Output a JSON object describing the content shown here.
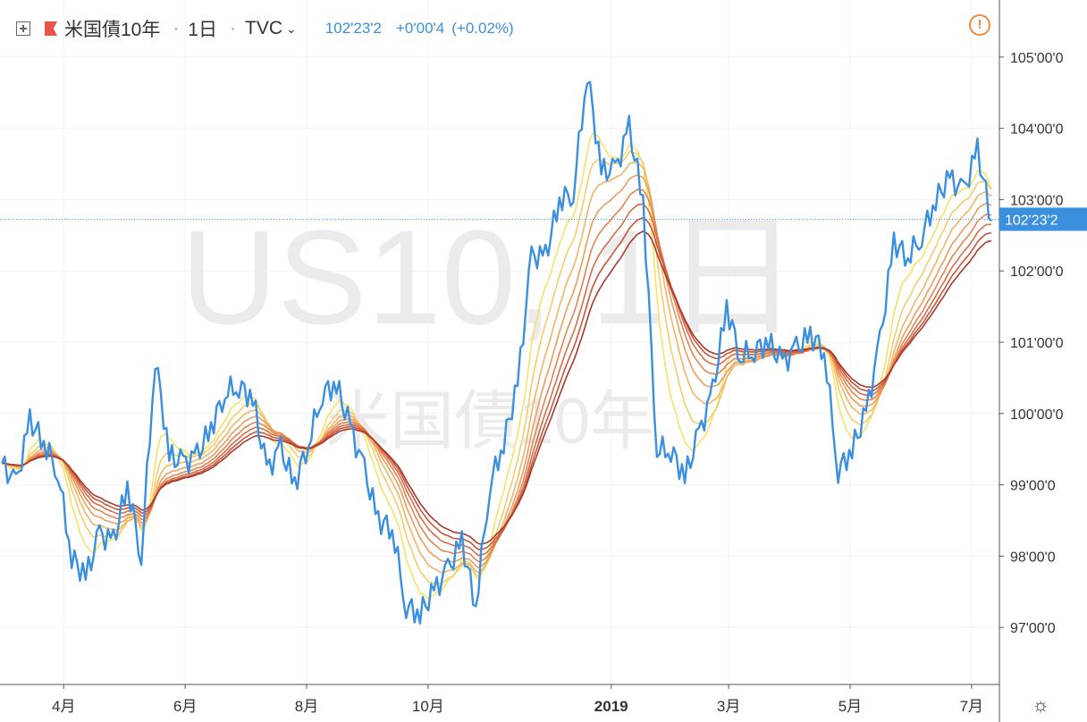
{
  "header": {
    "symbol": "米国債10年",
    "interval": "1日",
    "source": "TVC",
    "last_price": "102'23'2",
    "change": "+0'00'4",
    "change_pct": "(+0.02%)"
  },
  "watermark": {
    "line1": "US10, 1日",
    "line2": "米国債10年"
  },
  "icons": {
    "add": "plus-square-icon",
    "flag": "flag-icon",
    "warning": "exclamation-circle-icon",
    "settings": "gear-icon"
  },
  "colors": {
    "price_line": "#3b8fdf",
    "last_price_badge": "#3b8fdf",
    "ribbon": [
      "#f5e26a",
      "#f3cd6b",
      "#f1b565",
      "#ed9c5c",
      "#e58453",
      "#d96c48",
      "#c8553c",
      "#a63a2b"
    ]
  },
  "chart_data": {
    "type": "line",
    "x": [
      "2018-03-01",
      "2018-03-08",
      "2018-03-15",
      "2018-03-22",
      "2018-03-29",
      "2018-04-05",
      "2018-04-12",
      "2018-04-19",
      "2018-04-26",
      "2018-05-03",
      "2018-05-10",
      "2018-05-17",
      "2018-05-24",
      "2018-05-31",
      "2018-06-07",
      "2018-06-14",
      "2018-06-21",
      "2018-06-28",
      "2018-07-05",
      "2018-07-12",
      "2018-07-19",
      "2018-07-26",
      "2018-08-02",
      "2018-08-09",
      "2018-08-16",
      "2018-08-23",
      "2018-08-30",
      "2018-09-06",
      "2018-09-13",
      "2018-09-20",
      "2018-09-27",
      "2018-10-04",
      "2018-10-11",
      "2018-10-18",
      "2018-10-25",
      "2018-11-01",
      "2018-11-08",
      "2018-11-15",
      "2018-11-22",
      "2018-11-29",
      "2018-12-06",
      "2018-12-13",
      "2018-12-20",
      "2018-12-27",
      "2019-01-03",
      "2019-01-10",
      "2019-01-17",
      "2019-01-24",
      "2019-01-31",
      "2019-02-07",
      "2019-02-14",
      "2019-02-21",
      "2019-02-28",
      "2019-03-07",
      "2019-03-14",
      "2019-03-21",
      "2019-03-28",
      "2019-04-04",
      "2019-04-11",
      "2019-04-18",
      "2019-04-25",
      "2019-05-02",
      "2019-05-09",
      "2019-05-16",
      "2019-05-23",
      "2019-05-30",
      "2019-06-06",
      "2019-06-13",
      "2019-06-20",
      "2019-06-27",
      "2019-07-04",
      "2019-07-11"
    ],
    "series": [
      {
        "values": [
          99.3,
          99.0,
          99.9,
          99.6,
          99.2,
          98.0,
          97.7,
          98.3,
          98.2,
          99.0,
          98.0,
          100.8,
          99.4,
          99.3,
          99.4,
          99.8,
          100.3,
          100.4,
          100.2,
          99.2,
          99.5,
          99.0,
          99.6,
          100.3,
          100.4,
          99.8,
          99.2,
          98.5,
          98.4,
          97.3,
          97.2,
          97.5,
          97.8,
          98.2,
          97.3,
          99.0,
          99.6,
          100.4,
          102.2,
          102.2,
          103.0,
          103.1,
          104.8,
          103.4,
          103.4,
          104.0,
          103.0,
          99.5,
          99.5,
          99.1,
          99.7,
          100.3,
          101.5,
          100.8,
          100.9,
          101.0,
          100.7,
          100.9,
          101.1,
          100.9,
          99.2,
          99.5,
          100.0,
          101.0,
          102.4,
          102.2,
          102.5,
          103.0,
          103.3,
          103.1,
          103.7,
          102.7
        ]
      }
    ],
    "ribbon_series": 8,
    "ylim": [
      96.2,
      105.8
    ],
    "yticks": [
      97,
      98,
      99,
      100,
      101,
      102,
      103,
      104,
      105
    ],
    "ytick_labels": [
      "97'00'0",
      "98'00'0",
      "99'00'0",
      "100'00'0",
      "101'00'0",
      "102'00'0",
      "103'00'0",
      "104'00'0",
      "105'00'0"
    ],
    "xlim": [
      "2018-02-28",
      "2019-07-15"
    ],
    "xticks": [
      "2018-04-01",
      "2018-06-01",
      "2018-08-01",
      "2018-10-01",
      "2019-01-01",
      "2019-03-01",
      "2019-05-01",
      "2019-07-01"
    ],
    "xtick_labels": [
      "4月",
      "6月",
      "8月",
      "10月",
      "2019",
      "3月",
      "5月",
      "7月"
    ],
    "last_value": 102.725,
    "last_label": "102'23'2",
    "grid": true
  }
}
